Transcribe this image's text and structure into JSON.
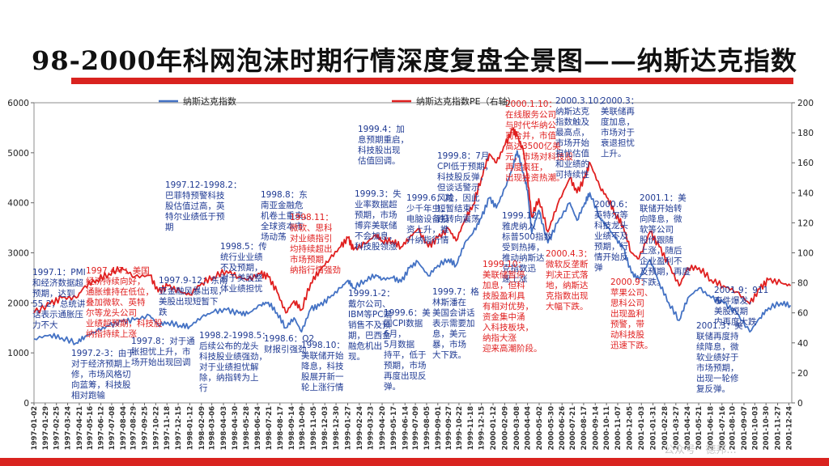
{
  "page": {
    "title": "98-2000年科网泡沫时期行情深度复盘全景图——纳斯达克指数",
    "watermark": "公众号 · 德邦..."
  },
  "colors": {
    "accent": "#d9231f",
    "nasdaq": "#4472c4",
    "pe": "#e02020",
    "annotation_blue": "#1f3a93",
    "annotation_red": "#e02020"
  },
  "chart_data": {
    "type": "line",
    "legend": {
      "placement": "top",
      "entries": [
        "纳斯达克指数",
        "纳斯达克指数PE（右轴）"
      ]
    },
    "y_left": {
      "ticks": [
        "0",
        "1000",
        "2000",
        "3000",
        "4000",
        "5000",
        "6000"
      ],
      "range": [
        0,
        6000
      ]
    },
    "y_right": {
      "ticks": [
        "0",
        "20",
        "40",
        "60",
        "80",
        "100",
        "120",
        "140",
        "160",
        "180",
        "200"
      ],
      "range": [
        0,
        200
      ]
    },
    "grid": false,
    "x_ticks": [
      "1997-01-02",
      "1997-01-29",
      "1997-02-25",
      "1997-03-24",
      "1997-04-21",
      "1997-05-16",
      "1997-06-12",
      "1997-07-08",
      "1997-08-04",
      "1997-08-29",
      "1997-09-25",
      "1997-10-22",
      "1997-11-18",
      "1997-12-15",
      "1998-01-12",
      "1998-02-09",
      "1998-03-06",
      "1998-04-03",
      "1998-04-30",
      "1998-05-28",
      "1998-06-24",
      "1998-07-21",
      "1998-08-17",
      "1998-09-14",
      "1998-10-09",
      "1998-11-05",
      "1998-12-03",
      "1998-12-30",
      "1999-01-27",
      "1999-02-24",
      "1999-03-23",
      "1999-04-20",
      "1999-05-17",
      "1999-06-14",
      "1999-07-09",
      "1999-08-05",
      "1999-09-01",
      "1999-09-27",
      "1999-10-22",
      "1999-11-18",
      "1999-12-15",
      "2000-01-12",
      "2000-02-09",
      "2000-03-08",
      "2000-04-04",
      "2000-05-02",
      "2000-05-30",
      "2000-06-26",
      "2000-07-21",
      "2000-08-17",
      "2000-09-14",
      "2000-10-11",
      "2000-11-07",
      "2000-12-05",
      "2001-01-03",
      "2001-01-31",
      "2001-02-28",
      "2001-03-27",
      "2001-04-24",
      "2001-05-21",
      "2001-06-18",
      "2001-07-16",
      "2001-08-10",
      "2001-09-07",
      "2001-10-03",
      "2001-10-30",
      "2001-11-27",
      "2001-12-24"
    ],
    "series": [
      {
        "name": "纳斯达克指数",
        "axis": "left",
        "color": "#4472c4",
        "x": [
          "1997-01-02",
          "1997-02-10",
          "1997-03-10",
          "1997-04-14",
          "1997-05-05",
          "1997-06-02",
          "1997-07-01",
          "1997-08-01",
          "1997-09-01",
          "1997-10-08",
          "1997-10-28",
          "1997-11-20",
          "1997-12-20",
          "1998-01-12",
          "1998-02-10",
          "1998-03-10",
          "1998-04-10",
          "1998-05-10",
          "1998-06-01",
          "1998-07-01",
          "1998-07-20",
          "1998-08-10",
          "1998-08-31",
          "1998-09-20",
          "1998-10-08",
          "1998-10-30",
          "1998-11-20",
          "1998-12-15",
          "1999-01-10",
          "1999-01-28",
          "1999-02-10",
          "1999-03-10",
          "1999-04-05",
          "1999-04-20",
          "1999-05-15",
          "1999-06-05",
          "1999-06-25",
          "1999-07-15",
          "1999-08-09",
          "1999-09-01",
          "1999-09-27",
          "1999-10-15",
          "1999-11-05",
          "1999-11-25",
          "1999-12-15",
          "2000-01-03",
          "2000-01-20",
          "2000-02-10",
          "2000-02-28",
          "2000-03-10",
          "2000-03-25",
          "2000-04-04",
          "2000-04-14",
          "2000-05-01",
          "2000-05-23",
          "2000-06-15",
          "2000-07-15",
          "2000-08-01",
          "2000-08-20",
          "2000-09-01",
          "2000-09-25",
          "2000-10-15",
          "2000-11-01",
          "2000-11-20",
          "2000-12-10",
          "2000-12-28",
          "2001-01-24",
          "2001-02-15",
          "2001-03-10",
          "2001-04-04",
          "2001-04-25",
          "2001-05-22",
          "2001-06-20",
          "2001-07-20",
          "2001-08-20",
          "2001-09-21",
          "2001-10-15",
          "2001-11-05",
          "2001-12-05",
          "2001-12-28"
        ],
        "values": [
          1280,
          1360,
          1300,
          1200,
          1330,
          1440,
          1540,
          1620,
          1660,
          1745,
          1560,
          1610,
          1550,
          1530,
          1720,
          1820,
          1860,
          1790,
          1780,
          1960,
          2010,
          1800,
          1500,
          1700,
          1420,
          1880,
          1940,
          2100,
          2300,
          2450,
          2300,
          2450,
          2560,
          2470,
          2500,
          2420,
          2700,
          2820,
          2540,
          2750,
          2870,
          2750,
          3200,
          3400,
          3700,
          4100,
          3900,
          4300,
          4700,
          5040,
          4600,
          4250,
          3400,
          3850,
          3200,
          3600,
          4000,
          3650,
          4000,
          4200,
          3700,
          3500,
          3300,
          3100,
          2600,
          2470,
          2860,
          2400,
          2000,
          1650,
          2100,
          2300,
          2100,
          2000,
          1800,
          1420,
          1700,
          1900,
          2000,
          1950
        ]
      },
      {
        "name": "纳斯达克指数PE（右轴）",
        "axis": "right",
        "color": "#e02020",
        "x": [
          "1997-01-02",
          "1997-02-10",
          "1997-03-10",
          "1997-04-14",
          "1997-05-05",
          "1997-06-02",
          "1997-07-01",
          "1997-08-01",
          "1997-09-01",
          "1997-10-08",
          "1997-10-28",
          "1997-11-20",
          "1997-12-20",
          "1998-01-12",
          "1998-02-10",
          "1998-03-10",
          "1998-04-10",
          "1998-05-10",
          "1998-06-01",
          "1998-07-01",
          "1998-07-20",
          "1998-08-10",
          "1998-08-31",
          "1998-09-20",
          "1998-10-08",
          "1998-10-30",
          "1998-11-20",
          "1998-12-15",
          "1999-01-10",
          "1999-01-28",
          "1999-02-10",
          "1999-03-10",
          "1999-04-05",
          "1999-04-20",
          "1999-05-15",
          "1999-06-05",
          "1999-06-25",
          "1999-07-15",
          "1999-08-09",
          "1999-09-01",
          "1999-09-27",
          "1999-10-15",
          "1999-11-05",
          "1999-11-25",
          "1999-12-15",
          "2000-01-03",
          "2000-01-20",
          "2000-02-10",
          "2000-02-28",
          "2000-03-10",
          "2000-03-25",
          "2000-04-04",
          "2000-04-14",
          "2000-05-01",
          "2000-05-23",
          "2000-06-15",
          "2000-07-15",
          "2000-08-01",
          "2000-08-20",
          "2000-09-01",
          "2000-09-25",
          "2000-10-15",
          "2000-11-01",
          "2000-11-20",
          "2000-12-10",
          "2000-12-28",
          "2001-01-24",
          "2001-02-15",
          "2001-03-10",
          "2001-04-04",
          "2001-04-25",
          "2001-05-22",
          "2001-06-20",
          "2001-07-20",
          "2001-08-20",
          "2001-09-21",
          "2001-10-15",
          "2001-11-05",
          "2001-12-05",
          "2001-12-28"
        ],
        "values": [
          60,
          66,
          70,
          70,
          78,
          82,
          86,
          90,
          84,
          85,
          74,
          78,
          74,
          72,
          80,
          84,
          88,
          84,
          82,
          86,
          84,
          74,
          60,
          68,
          62,
          80,
          88,
          96,
          104,
          110,
          102,
          106,
          112,
          108,
          108,
          104,
          110,
          116,
          104,
          110,
          116,
          108,
          122,
          132,
          150,
          166,
          160,
          172,
          182,
          178,
          168,
          150,
          124,
          136,
          114,
          132,
          150,
          140,
          150,
          160,
          144,
          136,
          126,
          118,
          100,
          96,
          114,
          104,
          92,
          78,
          90,
          90,
          82,
          78,
          74,
          66,
          76,
          82,
          80,
          78
        ]
      }
    ]
  },
  "annotations": [
    {
      "color": "blue",
      "lines": [
        "1997.1：PMI",
        "和经济数据超",
        "预期，达到",
        "55.2，总统讲",
        "话表示通胀压",
        "力不大"
      ]
    },
    {
      "color": "red",
      "lines": [
        "1997.4-7：美国",
        "经济持续向好，",
        "通胀维持在低位，",
        "叠加微软、英特",
        "尔等龙头公司",
        "业绩超预期，科技股",
        "纳指持续上涨"
      ]
    },
    {
      "color": "blue",
      "lines": [
        "1997.2-3：由于",
        "对于经济预期上",
        "修，市场风格切",
        "向蓝筹，科技股",
        "相对跑输"
      ]
    },
    {
      "color": "blue",
      "lines": [
        "1997.9-12：东南",
        "亚金融风暴出现，",
        "美股出现短暂下",
        "跌"
      ]
    },
    {
      "color": "blue",
      "lines": [
        "1997.8：对于通",
        "胀担忧上升，市",
        "场开始出现回调"
      ]
    },
    {
      "color": "blue",
      "lines": [
        "1997.12-1998.2：",
        "巴菲特预警科技",
        "股估值过高，英",
        "特尔业绩低于预",
        "期"
      ]
    },
    {
      "color": "blue",
      "lines": [
        "1998.5：传",
        "统行业业绩",
        "不及预期，",
        "对于美股整",
        "体业绩担忧"
      ]
    },
    {
      "color": "blue",
      "lines": [
        "1998.2-1998.5：",
        "后续公布的龙头",
        "科技股业绩强劲，",
        "对于业绩担忧解",
        "除，纳指转为上",
        "行"
      ]
    },
    {
      "color": "blue",
      "lines": [
        "1998.8：东",
        "南亚金融危",
        "机卷土重来，",
        "全球资本市",
        "场动荡"
      ]
    },
    {
      "color": "blue",
      "lines": [
        "1998.6：Q2",
        "财报引强劲"
      ]
    },
    {
      "color": "red",
      "lines": [
        "1998.11：",
        "微软、思科",
        "对业绩指引",
        "均持续超出",
        "市场预期，",
        "纳指行情强劲"
      ]
    },
    {
      "color": "blue",
      "lines": [
        "1998.10：",
        "美联储开始",
        "降息，科技",
        "股展开新一",
        "轮上涨行情"
      ]
    },
    {
      "color": "blue",
      "lines": [
        "1999.4：加",
        "息预期重启，",
        "科技股出现",
        "估值回调。"
      ]
    },
    {
      "color": "blue",
      "lines": [
        "1999.3：失",
        "业率数据超",
        "预期，市场",
        "博弈美联储",
        "不会加息，",
        "科技股领涨"
      ]
    },
    {
      "color": "blue",
      "lines": [
        "1999.6：减",
        "少千年虫，",
        "电脑设备投",
        "资上升，推",
        "升纳指行情"
      ]
    },
    {
      "color": "blue",
      "lines": [
        "1999.1-2：",
        "戴尔公司、",
        "IBM等PC端",
        "销售不及预",
        "期，巴西金",
        "融危机出",
        "现。"
      ]
    },
    {
      "color": "blue",
      "lines": [
        "1999.6：美",
        "国CPI数据",
        "6月，",
        "5月数据",
        "持平，低于",
        "预期，市场",
        "再度出现反",
        "弹。"
      ]
    },
    {
      "color": "blue",
      "lines": [
        "1999.8：7月",
        "CPI低于预期，",
        "科技股反弹，",
        "但谈话警示",
        "风险，因此",
        "短暂结束下",
        "跌转向震荡"
      ]
    },
    {
      "color": "blue",
      "lines": [
        "1999.7：格",
        "林斯潘在",
        "美国会讲话",
        "表示需要加",
        "息，美元",
        "暴，市场",
        "大下跌。"
      ]
    },
    {
      "color": "blue",
      "lines": [
        "1999.12：",
        "雅虎纳入",
        "标普500指数",
        "受到热捧，",
        "推动纳斯达",
        "克指数迅",
        "速上涨"
      ]
    },
    {
      "color": "red",
      "lines": [
        "1999.10：",
        "美联储暂停",
        "加息，但科",
        "技股盈利具",
        "有相对优势，",
        "资金集中涌",
        "入科技板块，",
        "纳指大涨",
        "迎来高潮阶段。"
      ]
    },
    {
      "color": "red",
      "lines": [
        "2000.1.10：",
        "在线服务公司",
        "与时代华纳公",
        "司合并，市值",
        "高达3500亿美",
        "元，市场对科技股",
        "再度疯狂，",
        "出现投资热潮。"
      ]
    },
    {
      "color": "blue",
      "lines": [
        "2000.3.10：",
        "纳斯达克",
        "指数触及",
        "最高点，",
        "市场开始",
        "担忧估值",
        "和业绩的",
        "可持续性"
      ]
    },
    {
      "color": "red",
      "lines": [
        "2000.4.3：",
        "微软反垄断",
        "判决正式落",
        "地，纳斯达",
        "克指数出现",
        "大幅下跌。"
      ]
    },
    {
      "color": "blue",
      "lines": [
        "2000.3：",
        "美联储再",
        "度加息，",
        "市场对于",
        "衰退担忧",
        "上升。"
      ]
    },
    {
      "color": "blue",
      "lines": [
        "2000.6：",
        "英特尔等",
        "科技龙头",
        "业绩不及",
        "预期，行",
        "情开始反",
        "弹"
      ]
    },
    {
      "color": "red",
      "lines": [
        "2000.9：",
        "苹果公司、",
        "思科公司",
        "出现盈利",
        "预警，带",
        "动科技股",
        "迅速下跌。"
      ]
    },
    {
      "color": "blue",
      "lines": [
        "2001.1：美",
        "联储开始转",
        "向降息，微",
        "软等公司",
        "股价跟随",
        "上涨，随后",
        "企业盈利不",
        "及预期，再度",
        "下跌。"
      ]
    },
    {
      "color": "blue",
      "lines": [
        "2001.9：911",
        "事件爆发，",
        "美股短期",
        "内再度大跌"
      ]
    },
    {
      "color": "blue",
      "lines": [
        "2001.3：美",
        "联储再度持",
        "续降息，微",
        "软业绩好于",
        "市场预期，",
        "出现一轮修",
        "复反弹。"
      ]
    }
  ]
}
